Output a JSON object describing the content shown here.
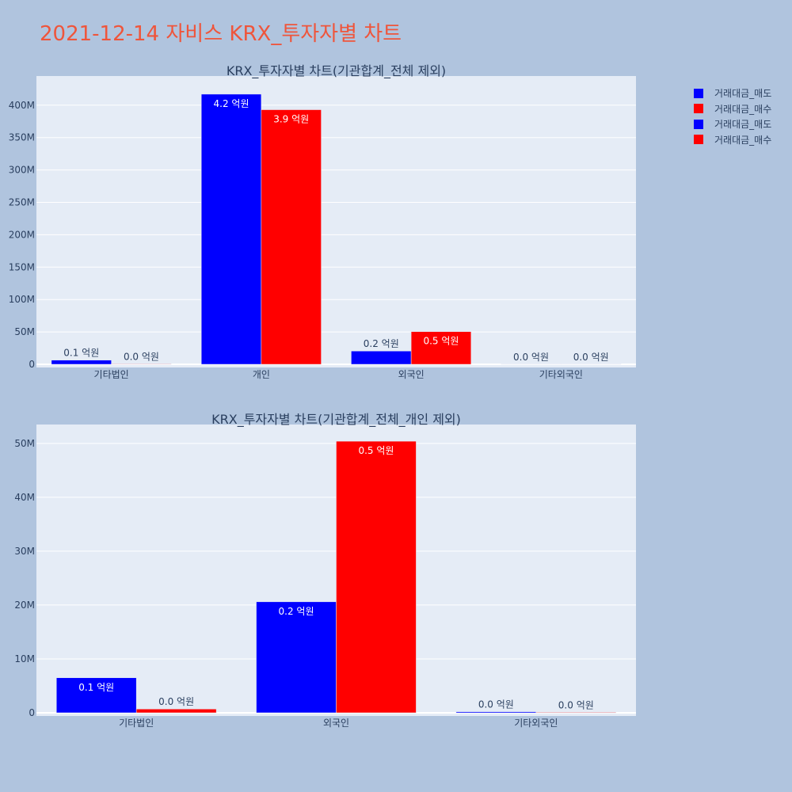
{
  "page": {
    "title": "2021-12-14 자비스 KRX_투자자별 차트"
  },
  "colors": {
    "plot_bg": "#E5ECF6",
    "grid": "#FFFFFF",
    "text": "#2a3f5f",
    "title": "#EF553B"
  },
  "legend": [
    {
      "label": "거래대금_매도",
      "color": "#0000FF"
    },
    {
      "label": "거래대금_매수",
      "color": "#FF0000"
    },
    {
      "label": "거래대금_매도",
      "color": "#0000FF"
    },
    {
      "label": "거래대금_매수",
      "color": "#FF0000"
    }
  ],
  "chart_data": [
    {
      "type": "bar",
      "title": "KRX_투자자별 차트(기관합계_전체 제외)",
      "categories": [
        "기타법인",
        "개인",
        "외국인",
        "기타외국인"
      ],
      "ylim": [
        0,
        445000000
      ],
      "yticks": [
        0,
        50000000,
        100000000,
        150000000,
        200000000,
        250000000,
        300000000,
        350000000,
        400000000
      ],
      "ytick_labels": [
        "0",
        "50M",
        "100M",
        "150M",
        "200M",
        "250M",
        "300M",
        "350M",
        "400M"
      ],
      "series": [
        {
          "name": "거래대금_매도",
          "color": "#0000FF",
          "values": [
            6500000,
            417000000,
            20500000,
            200000
          ],
          "labels": [
            "0.1 억원",
            "4.2 억원",
            "0.2 억원",
            "0.0 억원"
          ]
        },
        {
          "name": "거래대금_매수",
          "color": "#FF0000",
          "values": [
            700000,
            393000000,
            50500000,
            100000
          ],
          "labels": [
            "0.0 억원",
            "3.9 억원",
            "0.5 억원",
            "0.0 억원"
          ]
        }
      ]
    },
    {
      "type": "bar",
      "title": "KRX_투자자별 차트(기관합계_전체_개인 제외)",
      "categories": [
        "기타법인",
        "외국인",
        "기타외국인"
      ],
      "ylim": [
        0,
        53500000
      ],
      "yticks": [
        0,
        10000000,
        20000000,
        30000000,
        40000000,
        50000000
      ],
      "ytick_labels": [
        "0",
        "10M",
        "20M",
        "30M",
        "40M",
        "50M"
      ],
      "series": [
        {
          "name": "거래대금_매도",
          "color": "#0000FF",
          "values": [
            6500000,
            20600000,
            200000
          ],
          "labels": [
            "0.1 억원",
            "0.2 억원",
            "0.0 억원"
          ]
        },
        {
          "name": "거래대금_매수",
          "color": "#FF0000",
          "values": [
            700000,
            50400000,
            100000
          ],
          "labels": [
            "0.0 억원",
            "0.5 억원",
            "0.0 억원"
          ]
        }
      ]
    }
  ]
}
